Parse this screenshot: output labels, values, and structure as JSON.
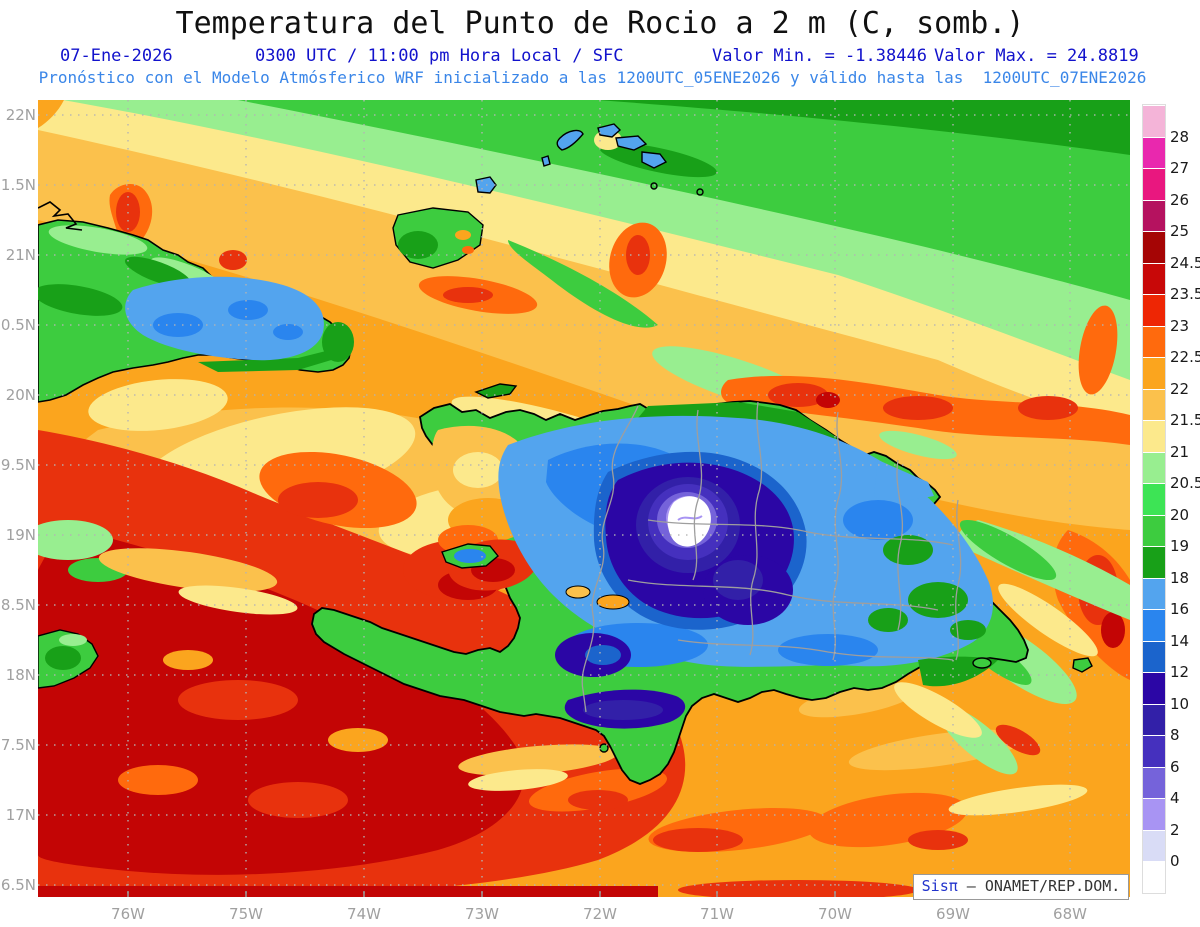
{
  "header": {
    "title": "Temperatura del Punto de Rocio a 2 m (C, somb.)",
    "date": "07-Ene-2026",
    "valid_time": "0300 UTC / 11:00 pm Hora Local / SFC",
    "min_label": "Valor Min. = -1.38446",
    "max_label": "Valor Max. = 24.8819",
    "model_line": "Pronóstico con el Modelo Atmósferico WRF inicializado a las 1200UTC_05ENE2026 y válido hasta las  1200UTC_07ENE2026"
  },
  "axes": {
    "lat_labels": [
      "22N",
      "1.5N",
      "21N",
      "0.5N",
      "20N",
      "9.5N",
      "19N",
      "8.5N",
      "18N",
      "7.5N",
      "17N",
      "6.5N"
    ],
    "lon_labels": [
      "76W",
      "75W",
      "74W",
      "73W",
      "72W",
      "71W",
      "70W",
      "69W",
      "68W"
    ]
  },
  "colorbar": {
    "tick_labels": [
      "28",
      "27",
      "26",
      "25",
      "24.5",
      "23.5",
      "23",
      "22.5",
      "22",
      "21.5",
      "21",
      "20.5",
      "20",
      "19",
      "18",
      "16",
      "14",
      "12",
      "10",
      "8",
      "6",
      "4",
      "2",
      "0"
    ],
    "segment_colors_top_to_bottom": [
      "#F4B4D8",
      "#E928AE",
      "#E9177F",
      "#B5125F",
      "#A50505",
      "#C80808",
      "#EE2604",
      "#FF6A0D",
      "#FBA51E",
      "#FBC14C",
      "#FCE98C",
      "#98EE90",
      "#3DE455",
      "#3DCC3F",
      "#18A018",
      "#53A4EE",
      "#2A85EE",
      "#1B64CC",
      "#2B06A5",
      "#3220A8",
      "#4530BE",
      "#7563DA",
      "#A894F3",
      "#D9DCF6",
      "#FFFFFF"
    ]
  },
  "footer": {
    "brand": "Sisπ",
    "credit": " – ONAMET/REP.DOM."
  },
  "colors": {
    "subtitle_blue": "#1212CC",
    "model_line_blue": "#3A86E8",
    "axis_label_gray": "#A0A0A0",
    "colorbar_label": "#1A1A1A"
  }
}
